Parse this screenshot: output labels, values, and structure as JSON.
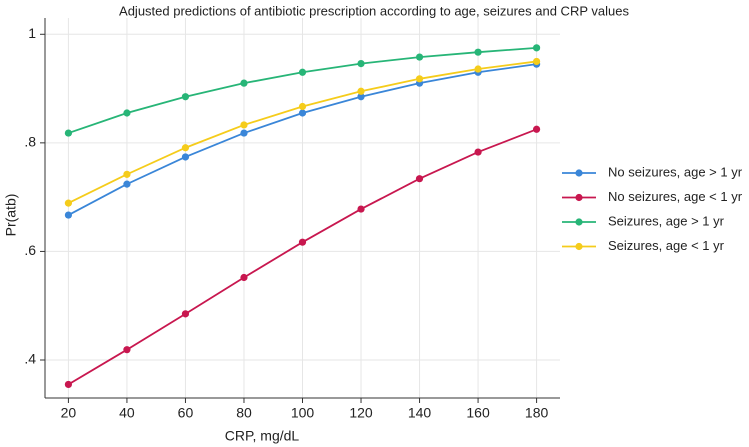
{
  "chart_data": {
    "type": "line",
    "title": "Adjusted predictions of antibiotic prescription according to age, seizures and CRP values",
    "x_label": "CRP, mg/dL",
    "y_label": "Pr(atb)",
    "x": [
      20,
      40,
      60,
      80,
      100,
      120,
      140,
      160,
      180
    ],
    "series": [
      {
        "name": "No seizures, age > 1 yr",
        "color": "#3a86d8",
        "values": [
          0.667,
          0.724,
          0.774,
          0.818,
          0.855,
          0.885,
          0.91,
          0.93,
          0.945
        ]
      },
      {
        "name": "No seizures, age < 1 yr",
        "color": "#c8174f",
        "values": [
          0.355,
          0.419,
          0.485,
          0.552,
          0.617,
          0.678,
          0.734,
          0.783,
          0.825
        ]
      },
      {
        "name": "Seizures, age > 1 yr",
        "color": "#27b577",
        "values": [
          0.818,
          0.855,
          0.885,
          0.91,
          0.93,
          0.946,
          0.958,
          0.967,
          0.975
        ]
      },
      {
        "name": "Seizures, age < 1 yr",
        "color": "#f5cc1b",
        "values": [
          0.689,
          0.742,
          0.791,
          0.833,
          0.867,
          0.895,
          0.918,
          0.936,
          0.95
        ]
      }
    ],
    "xlim": [
      12,
      188
    ],
    "ylim": [
      0.33,
      1.03
    ],
    "xticks": [
      20,
      40,
      60,
      80,
      100,
      120,
      140,
      160,
      180
    ],
    "yticks": [
      {
        "value": 0.4,
        "label": ".4"
      },
      {
        "value": 0.6,
        "label": ".6"
      },
      {
        "value": 0.8,
        "label": ".8"
      },
      1
    ],
    "grid": true,
    "legend": "right"
  }
}
